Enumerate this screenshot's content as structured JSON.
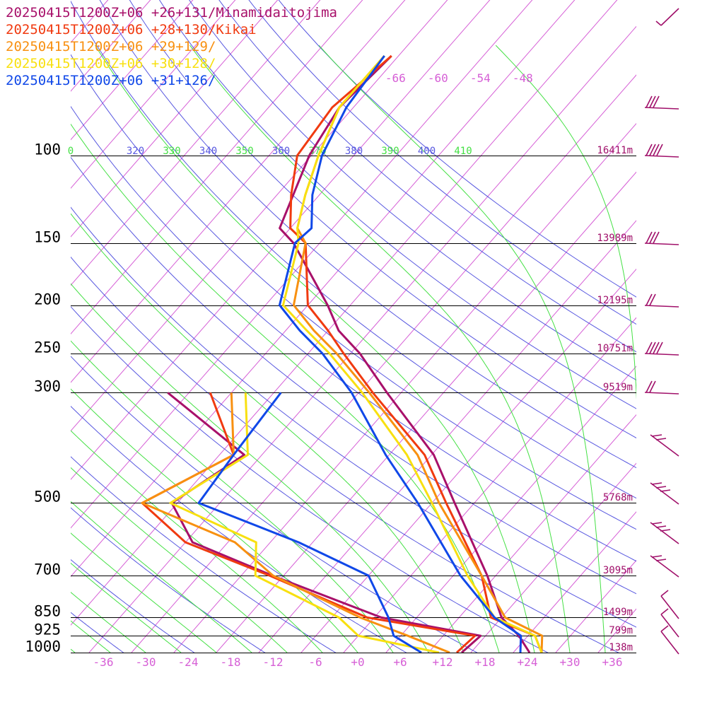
{
  "colors": {
    "isotherm": "#d65fd6",
    "dry_adiabat": "#5858e0",
    "moist_adiabat": "#44e044",
    "isobar": "#000000",
    "wind_barb": "#a0106a"
  },
  "chart_data": {
    "type": "line",
    "chart_kind": "skew-T log-P sounding",
    "title": "",
    "xlabel": "",
    "ylabel": "",
    "temperature_ticks": [
      "-36",
      "-30",
      "-24",
      "-18",
      "-12",
      "-6",
      "+0",
      "+6",
      "+12",
      "+18",
      "+24",
      "+30",
      "+36"
    ],
    "temperature_tick_values": [
      -36,
      -30,
      -24,
      -18,
      -12,
      -6,
      0,
      6,
      12,
      18,
      24,
      30,
      36
    ],
    "upper_isotherm_labels": [
      "-66",
      "-60",
      "-54",
      "-48"
    ],
    "upper_isotherm_values": [
      -66,
      -60,
      -54,
      -48
    ],
    "pressure_levels": [
      100,
      150,
      200,
      250,
      300,
      500,
      700,
      850,
      925,
      1000
    ],
    "pressure_labels": [
      "100",
      "150",
      "200",
      "250",
      "300",
      "500",
      "700",
      "850",
      "925",
      "1000"
    ],
    "height_labels": [
      {
        "p": 100,
        "text": "16411m"
      },
      {
        "p": 150,
        "text": "13989m"
      },
      {
        "p": 200,
        "text": "12195m"
      },
      {
        "p": 250,
        "text": "10751m"
      },
      {
        "p": 300,
        "text": "9519m"
      },
      {
        "p": 500,
        "text": "5768m"
      },
      {
        "p": 700,
        "text": "3095m"
      },
      {
        "p": 850,
        "text": "1499m"
      },
      {
        "p": 925,
        "text": "799m"
      },
      {
        "p": 1000,
        "text": "138m"
      }
    ],
    "theta_labels": [
      {
        "text": "0",
        "kind": "moist"
      },
      {
        "text": "320",
        "kind": "dry"
      },
      {
        "text": "330",
        "kind": "moist"
      },
      {
        "text": "340",
        "kind": "dry"
      },
      {
        "text": "350",
        "kind": "moist"
      },
      {
        "text": "360",
        "kind": "dry"
      },
      {
        "text": "370",
        "kind": "moist"
      },
      {
        "text": "380",
        "kind": "dry"
      },
      {
        "text": "390",
        "kind": "moist"
      },
      {
        "text": "400",
        "kind": "dry"
      },
      {
        "text": "410",
        "kind": "moist"
      }
    ],
    "series": [
      {
        "name": "20250415T1200Z+06 +26+131/Minamidaitojima",
        "color": "#a8106a",
        "temperature": [
          {
            "p": 1000,
            "t": 24.3
          },
          {
            "p": 925,
            "t": 20.7
          },
          {
            "p": 850,
            "t": 16.0
          },
          {
            "p": 700,
            "t": 8.8
          },
          {
            "p": 500,
            "t": -4.8
          },
          {
            "p": 400,
            "t": -13.7
          },
          {
            "p": 300,
            "t": -28.0
          },
          {
            "p": 250,
            "t": -36.7
          },
          {
            "p": 225,
            "t": -42.5
          },
          {
            "p": 200,
            "t": -47.2
          },
          {
            "p": 150,
            "t": -59.7
          },
          {
            "p": 140,
            "t": -63.5
          },
          {
            "p": 100,
            "t": -68.3
          },
          {
            "p": 80,
            "t": -70.0
          },
          {
            "p": 63,
            "t": -69.0
          }
        ],
        "dewpoint": [
          {
            "p": 1000,
            "t": 14.7
          },
          {
            "p": 925,
            "t": 15.3
          },
          {
            "p": 850,
            "t": -1.0
          },
          {
            "p": 700,
            "t": -21.6
          },
          {
            "p": 600,
            "t": -37.0
          },
          {
            "p": 500,
            "t": -44.8
          },
          {
            "p": 400,
            "t": -40.5
          },
          {
            "p": 300,
            "t": -59.0
          }
        ]
      },
      {
        "name": "20250415T1200Z+06 +28+130/Kikai",
        "color": "#f03a10",
        "temperature": [
          {
            "p": 1000,
            "t": 26.0
          },
          {
            "p": 925,
            "t": 23.0
          },
          {
            "p": 850,
            "t": 14.5
          },
          {
            "p": 700,
            "t": 8.0
          },
          {
            "p": 500,
            "t": -6.0
          },
          {
            "p": 400,
            "t": -15.0
          },
          {
            "p": 300,
            "t": -30.0
          },
          {
            "p": 250,
            "t": -39.0
          },
          {
            "p": 225,
            "t": -44.0
          },
          {
            "p": 200,
            "t": -50.0
          },
          {
            "p": 150,
            "t": -58.0
          },
          {
            "p": 140,
            "t": -62.0
          },
          {
            "p": 120,
            "t": -66.0
          },
          {
            "p": 100,
            "t": -70.0
          },
          {
            "p": 80,
            "t": -71.0
          },
          {
            "p": 63,
            "t": -69.0
          }
        ],
        "dewpoint": [
          {
            "p": 1000,
            "t": 14.0
          },
          {
            "p": 925,
            "t": 14.5
          },
          {
            "p": 850,
            "t": -3.0
          },
          {
            "p": 700,
            "t": -22.0
          },
          {
            "p": 600,
            "t": -38.0
          },
          {
            "p": 500,
            "t": -49.0
          },
          {
            "p": 400,
            "t": -42.0
          },
          {
            "p": 300,
            "t": -53.0
          }
        ]
      },
      {
        "name": "20250415T1200Z+06 +29+129/",
        "color": "#f89010",
        "temperature": [
          {
            "p": 1000,
            "t": 26.0
          },
          {
            "p": 925,
            "t": 24.0
          },
          {
            "p": 850,
            "t": 16.5
          },
          {
            "p": 700,
            "t": 8.0
          },
          {
            "p": 500,
            "t": -7.0
          },
          {
            "p": 400,
            "t": -16.0
          },
          {
            "p": 300,
            "t": -30.5
          },
          {
            "p": 250,
            "t": -40.0
          },
          {
            "p": 225,
            "t": -46.0
          },
          {
            "p": 200,
            "t": -52.0
          },
          {
            "p": 150,
            "t": -58.0
          },
          {
            "p": 140,
            "t": -61.0
          },
          {
            "p": 120,
            "t": -64.0
          },
          {
            "p": 100,
            "t": -67.0
          },
          {
            "p": 80,
            "t": -70.0
          },
          {
            "p": 63,
            "t": -70.0
          }
        ],
        "dewpoint": [
          {
            "p": 1000,
            "t": 13.0
          },
          {
            "p": 925,
            "t": 5.0
          },
          {
            "p": 850,
            "t": -4.0
          },
          {
            "p": 700,
            "t": -21.5
          },
          {
            "p": 600,
            "t": -31.0
          },
          {
            "p": 500,
            "t": -49.0
          },
          {
            "p": 400,
            "t": -42.0
          },
          {
            "p": 300,
            "t": -50.0
          }
        ]
      },
      {
        "name": "20250415T1200Z+06 +30+128/",
        "color": "#f8e010",
        "temperature": [
          {
            "p": 1000,
            "t": 26.0
          },
          {
            "p": 925,
            "t": 23.0
          },
          {
            "p": 850,
            "t": 15.0
          },
          {
            "p": 700,
            "t": 6.0
          },
          {
            "p": 500,
            "t": -8.0
          },
          {
            "p": 400,
            "t": -17.5
          },
          {
            "p": 300,
            "t": -31.5
          },
          {
            "p": 250,
            "t": -41.0
          },
          {
            "p": 225,
            "t": -47.0
          },
          {
            "p": 200,
            "t": -53.5
          },
          {
            "p": 150,
            "t": -59.0
          },
          {
            "p": 140,
            "t": -61.0
          },
          {
            "p": 120,
            "t": -64.0
          },
          {
            "p": 100,
            "t": -67.0
          },
          {
            "p": 80,
            "t": -70.0
          },
          {
            "p": 63,
            "t": -70.0
          }
        ],
        "dewpoint": [
          {
            "p": 1000,
            "t": 11.5
          },
          {
            "p": 925,
            "t": -2.0
          },
          {
            "p": 850,
            "t": -7.0
          },
          {
            "p": 700,
            "t": -24.0
          },
          {
            "p": 600,
            "t": -28.0
          },
          {
            "p": 500,
            "t": -45.0
          },
          {
            "p": 400,
            "t": -40.0
          },
          {
            "p": 300,
            "t": -48.0
          }
        ]
      },
      {
        "name": "20250415T1200Z+06 +31+126/",
        "color": "#1048e8",
        "temperature": [
          {
            "p": 1000,
            "t": 23.0
          },
          {
            "p": 925,
            "t": 21.0
          },
          {
            "p": 850,
            "t": 15.0
          },
          {
            "p": 700,
            "t": 5.0
          },
          {
            "p": 500,
            "t": -10.0
          },
          {
            "p": 400,
            "t": -20.5
          },
          {
            "p": 300,
            "t": -33.0
          },
          {
            "p": 250,
            "t": -42.0
          },
          {
            "p": 225,
            "t": -48.0
          },
          {
            "p": 200,
            "t": -54.0
          },
          {
            "p": 150,
            "t": -59.5
          },
          {
            "p": 140,
            "t": -59.0
          },
          {
            "p": 120,
            "t": -63.0
          },
          {
            "p": 100,
            "t": -66.5
          },
          {
            "p": 80,
            "t": -69.0
          },
          {
            "p": 63,
            "t": -70.0
          }
        ],
        "dewpoint": [
          {
            "p": 1000,
            "t": 9.0
          },
          {
            "p": 925,
            "t": 3.0
          },
          {
            "p": 850,
            "t": 0.0
          },
          {
            "p": 700,
            "t": -8.0
          },
          {
            "p": 600,
            "t": -22.0
          },
          {
            "p": 500,
            "t": -41.0
          },
          {
            "p": 400,
            "t": -42.0
          },
          {
            "p": 300,
            "t": -43.0
          }
        ]
      }
    ]
  }
}
